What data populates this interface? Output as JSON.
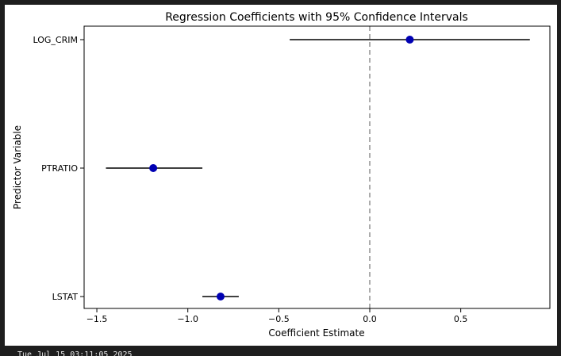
{
  "footer": {
    "text": "Tue Jul 15 03:11:05 2025"
  },
  "chart_data": {
    "type": "errorbar",
    "title": "Regression Coefficients with 95% Confidence Intervals",
    "xlabel": "Coefficient Estimate",
    "ylabel": "Predictor Variable",
    "xlim": [
      -1.57,
      0.99
    ],
    "xticks": [
      -1.5,
      -1.0,
      -0.5,
      0.0,
      0.5
    ],
    "xtick_labels": [
      "−1.5",
      "−1.0",
      "−0.5",
      "0.0",
      "0.5"
    ],
    "reference_line": {
      "x": 0.0,
      "style": "dashed",
      "color": "#808080"
    },
    "grid": false,
    "point_color": "#0000b3",
    "errorbar_color": "#000000",
    "categories": [
      "LOG_CRIM",
      "PTRATIO",
      "LSTAT"
    ],
    "estimates": [
      0.22,
      -1.19,
      -0.82
    ],
    "ci_lower": [
      -0.44,
      -1.45,
      -0.92
    ],
    "ci_upper": [
      0.88,
      -0.92,
      -0.72
    ]
  }
}
